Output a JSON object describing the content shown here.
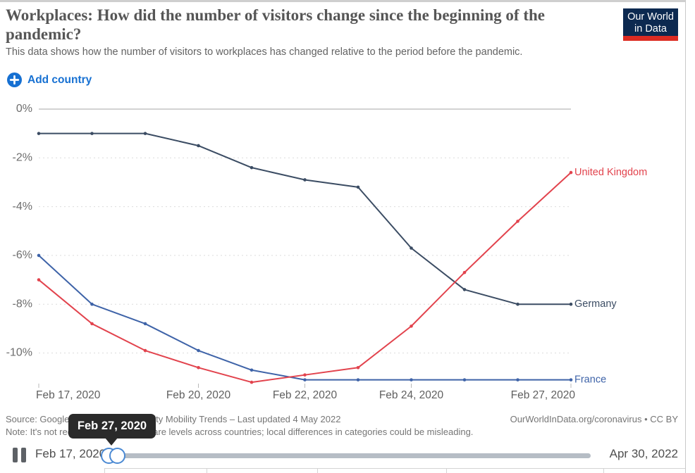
{
  "header": {
    "logo_line1": "Our World",
    "logo_line2": "in Data"
  },
  "controls": {
    "add_country_label": "Add country"
  },
  "chart_data": {
    "type": "line",
    "title": "Workplaces: How did the number of visitors change since the beginning of the pandemic?",
    "subtitle": "This data shows how the number of visitors to workplaces has changed relative to the period before the pandemic.",
    "x_days": [
      17,
      18,
      19,
      20,
      21,
      22,
      23,
      24,
      25,
      26,
      27
    ],
    "x_tick_labels": [
      {
        "day": 17,
        "label": "Feb 17, 2020",
        "anchor": "start"
      },
      {
        "day": 20,
        "label": "Feb 20, 2020",
        "anchor": "middle"
      },
      {
        "day": 22,
        "label": "Feb 22, 2020",
        "anchor": "middle"
      },
      {
        "day": 24,
        "label": "Feb 24, 2020",
        "anchor": "middle"
      },
      {
        "day": 27,
        "label": "Feb 27, 2020",
        "anchor": "end"
      }
    ],
    "y_ticks": [
      {
        "value": 0,
        "label": "0%"
      },
      {
        "value": -2,
        "label": "-2%"
      },
      {
        "value": -4,
        "label": "-4%"
      },
      {
        "value": -6,
        "label": "-6%"
      },
      {
        "value": -8,
        "label": "-8%"
      },
      {
        "value": -10,
        "label": "-10%"
      }
    ],
    "ylim": [
      -11.8,
      0.3
    ],
    "grid": true,
    "legend_position": "end-of-line",
    "series": [
      {
        "name": "France",
        "color": "#3e63a8",
        "values": [
          -6,
          -8,
          -8.8,
          -9.9,
          -10.7,
          -11.1,
          -11.1,
          -11.1,
          -11.1,
          -11.1,
          -11.1
        ]
      },
      {
        "name": "Germany",
        "color": "#3b4c63",
        "values": [
          -1,
          -1,
          -1,
          -1.5,
          -2.4,
          -2.9,
          -3.2,
          -5.7,
          -7.4,
          -8,
          -8
        ]
      },
      {
        "name": "United Kingdom",
        "color": "#e2434d",
        "values": [
          -7,
          -8.8,
          -9.9,
          -10.6,
          -11.2,
          -10.9,
          -10.6,
          -8.9,
          -6.7,
          -4.6,
          -2.6
        ]
      }
    ]
  },
  "footer": {
    "source": "Source: Google COVID-19 Community Mobility Trends – Last updated 4 May 2022",
    "note": "Note: It's not recommended to compare levels across countries; local differences in categories could be misleading.",
    "credit": "OurWorldInData.org/coronavirus • CC BY"
  },
  "timeline": {
    "start_label": "Feb 17, 2020",
    "end_label": "Apr 30, 2022",
    "tooltip": "Feb 27, 2020"
  }
}
